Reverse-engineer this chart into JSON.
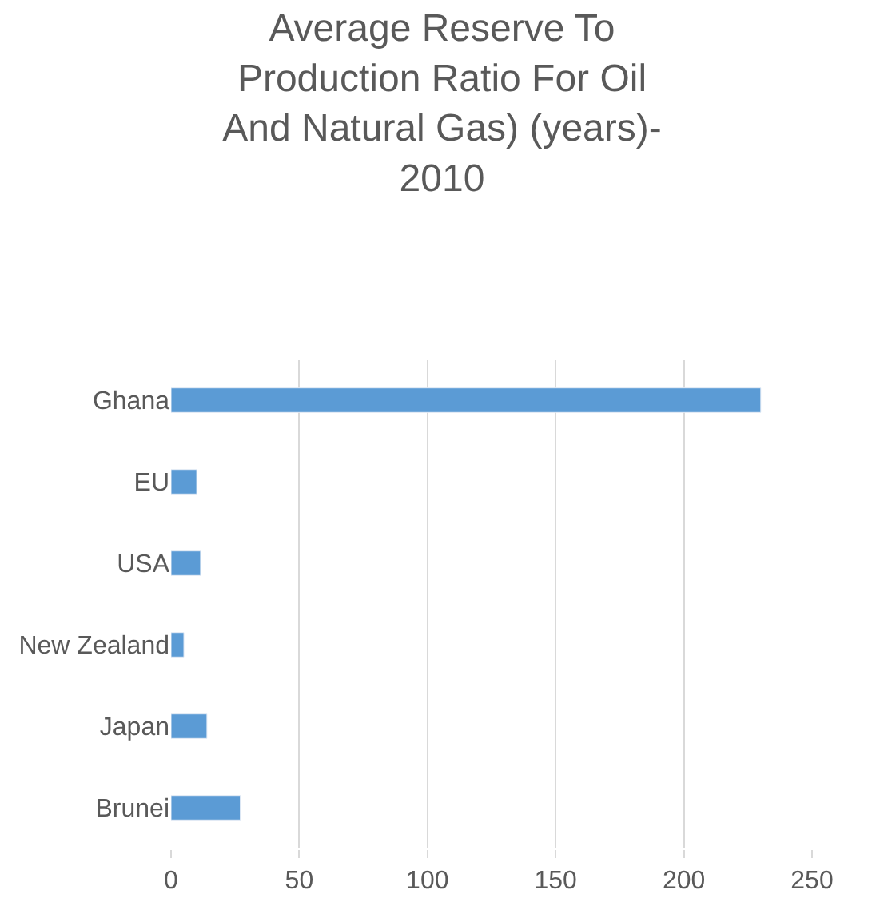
{
  "chart_data": {
    "type": "bar",
    "orientation": "horizontal",
    "title": "Average Reserve To Production Ratio For Oil And Natural Gas) (years)- 2010",
    "categories": [
      "Ghana",
      "EU",
      "USA",
      "New Zealand",
      "Japan",
      "Brunei"
    ],
    "values": [
      230,
      10,
      11.5,
      5,
      14,
      27
    ],
    "color": "#5b9bd5",
    "xlim": [
      0,
      250
    ],
    "xticks": [
      0,
      50,
      100,
      150,
      200,
      250
    ],
    "grid": "x",
    "legend": false
  }
}
